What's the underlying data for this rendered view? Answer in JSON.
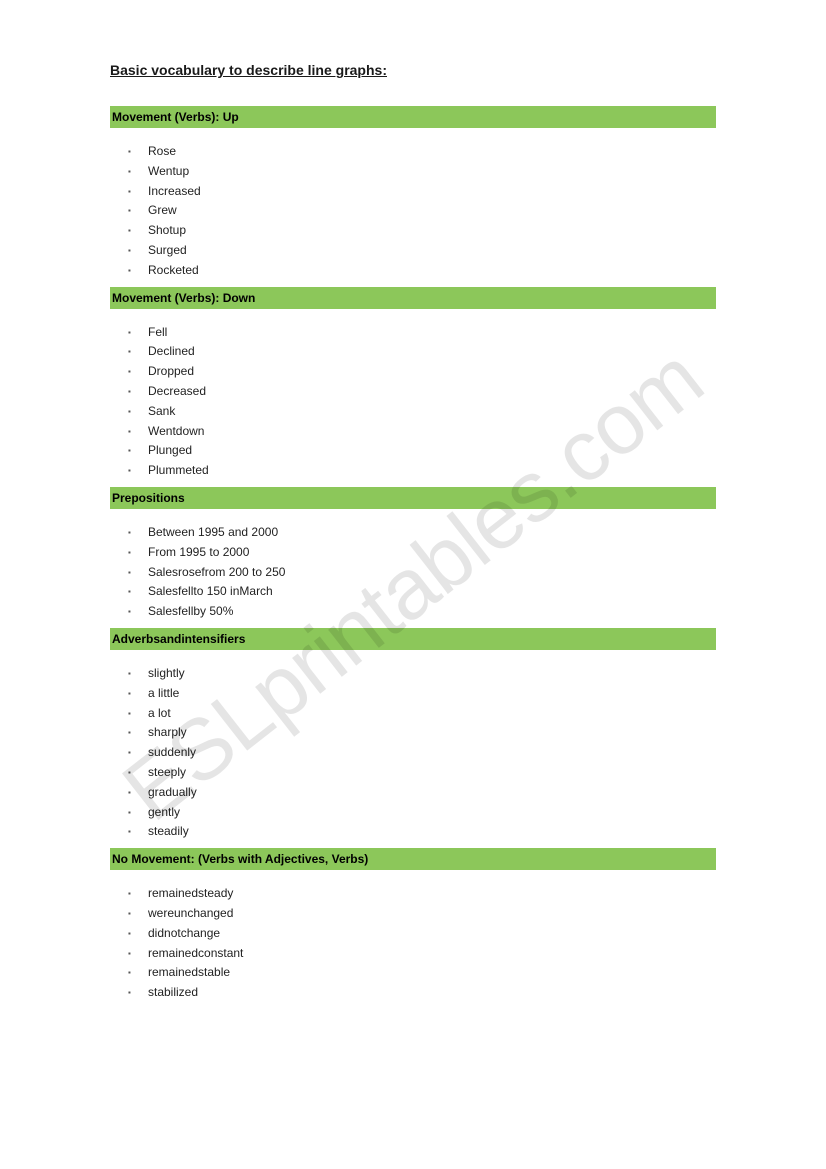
{
  "title": "Basic vocabulary to describe line graphs:",
  "watermark": "ESLprintables.com",
  "sections": [
    {
      "header": "Movement (Verbs): Up",
      "items": [
        "Rose",
        "Wentup",
        "Increased",
        "Grew",
        "Shotup",
        "Surged",
        "Rocketed"
      ]
    },
    {
      "header": "Movement (Verbs): Down",
      "items": [
        "Fell",
        "Declined",
        "Dropped",
        "Decreased",
        "Sank",
        "Wentdown",
        "Plunged",
        "Plummeted"
      ]
    },
    {
      "header": "Prepositions",
      "items": [
        "Between 1995 and 2000",
        "From 1995 to 2000",
        "Salesrosefrom 200 to 250",
        "Salesfellto 150 inMarch",
        "Salesfellby 50%"
      ]
    },
    {
      "header": "Adverbsandintensifiers",
      "items": [
        "slightly",
        "a little",
        "a lot",
        "sharply",
        "suddenly",
        "steeply",
        "gradually",
        "gently",
        "steadily"
      ]
    },
    {
      "header": "No Movement: (Verbs with Adjectives, Verbs)",
      "items": [
        "remainedsteady",
        "wereunchanged",
        "didnotchange",
        "remainedconstant",
        "remainedstable",
        "stabilized"
      ]
    }
  ],
  "colors": {
    "section_bg": "#8cc75a",
    "page_bg": "#ffffff",
    "text": "#1a1a1a",
    "watermark": "rgba(0,0,0,0.10)"
  }
}
